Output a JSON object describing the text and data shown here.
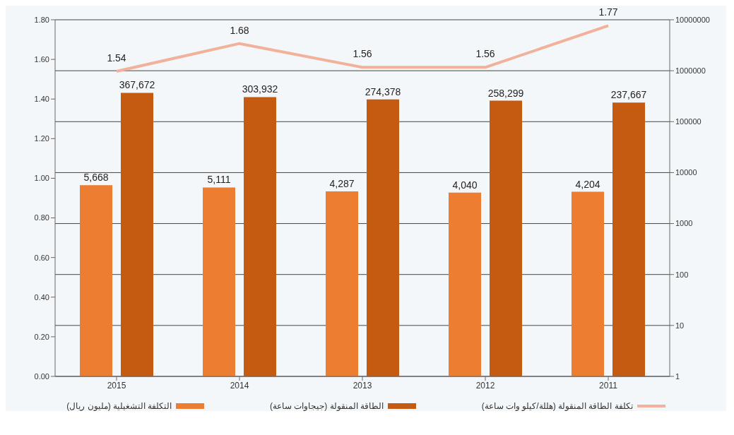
{
  "chart_data": {
    "type": "bar",
    "categories": [
      "2015",
      "2014",
      "2013",
      "2012",
      "2011"
    ],
    "series": [
      {
        "name": "التكلفة التشغيلية (مليون ريال)",
        "color": "#ed7d31",
        "axis": "y2",
        "values": [
          5668,
          5111,
          4287,
          4040,
          4204
        ],
        "value_labels": [
          "5,668",
          "5,111",
          "4,287",
          "4,040",
          "4,204"
        ]
      },
      {
        "name": "الطاقة المنقولة (جيجاوات ساعة)",
        "color": "#c55a11",
        "axis": "y2",
        "values": [
          367672,
          303932,
          274378,
          258299,
          237667
        ],
        "value_labels": [
          "367,672",
          "303,932",
          "274,378",
          "258,299",
          "237,667"
        ]
      },
      {
        "name": "تكلفة الطاقة المنقولة (هللة/كيلو وات ساعة)",
        "type": "line",
        "color": "#f2b19a",
        "values": [
          1.54,
          1.68,
          1.56,
          1.56,
          1.77
        ],
        "value_labels": [
          "1.54",
          "1.68",
          "1.56",
          "1.56",
          "1.77"
        ]
      }
    ],
    "ylim": [
      0,
      1.8
    ],
    "yticks": [
      {
        "value": 0,
        "label": "0.00"
      },
      {
        "value": 0.2,
        "label": "0.20"
      },
      {
        "value": 0.4,
        "label": "0.40"
      },
      {
        "value": 0.6,
        "label": "0.60"
      },
      {
        "value": 0.8,
        "label": "0.80"
      },
      {
        "value": 1,
        "label": "1.00"
      },
      {
        "value": 1.2,
        "label": "1.20"
      },
      {
        "value": 1.4,
        "label": "1.40"
      },
      {
        "value": 1.6,
        "label": "1.60"
      },
      {
        "value": 1.8,
        "label": "1.80"
      }
    ],
    "y2lim": [
      1,
      10000000
    ],
    "y2ticks": [
      1,
      10,
      100,
      1000,
      10000,
      100000,
      1000000,
      10000000
    ],
    "log": "y2",
    "grid": "y",
    "legend": "bottom",
    "marker": "none"
  }
}
